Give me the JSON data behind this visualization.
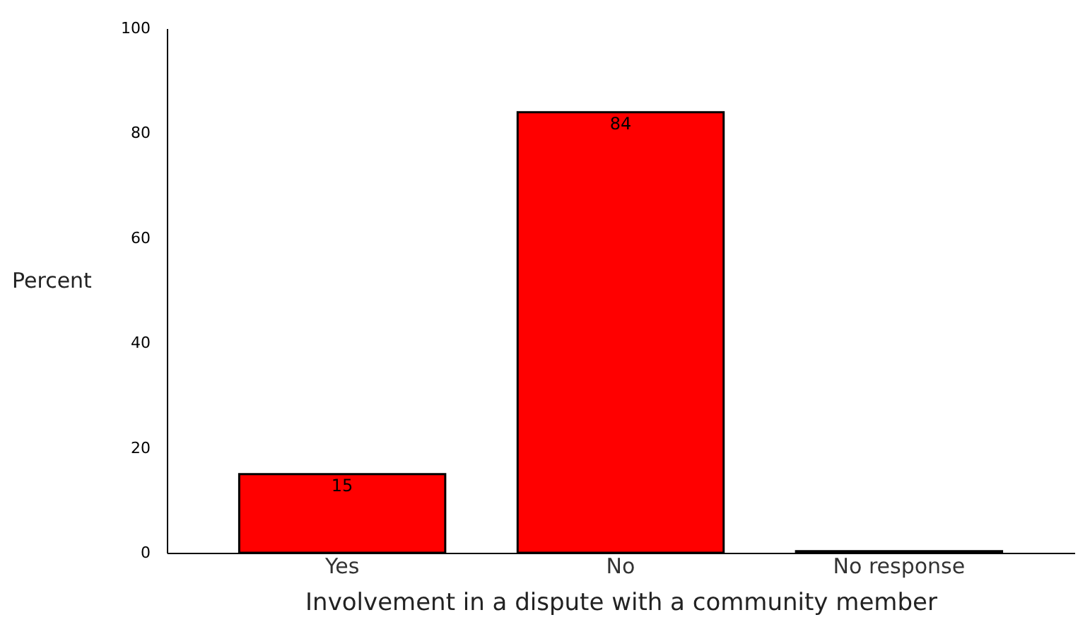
{
  "chart_data": {
    "type": "bar",
    "xlabel": "Involvement in a dispute with a community member",
    "ylabel": "Percent",
    "categories": [
      "Yes",
      "No",
      "No response"
    ],
    "values": [
      15,
      84,
      0.3
    ],
    "value_labels": [
      "15",
      "84",
      null
    ],
    "color": "#ff0000",
    "ylim": [
      0,
      100
    ],
    "yticks": [
      0,
      20,
      40,
      60,
      80,
      100
    ],
    "grid": false
  }
}
